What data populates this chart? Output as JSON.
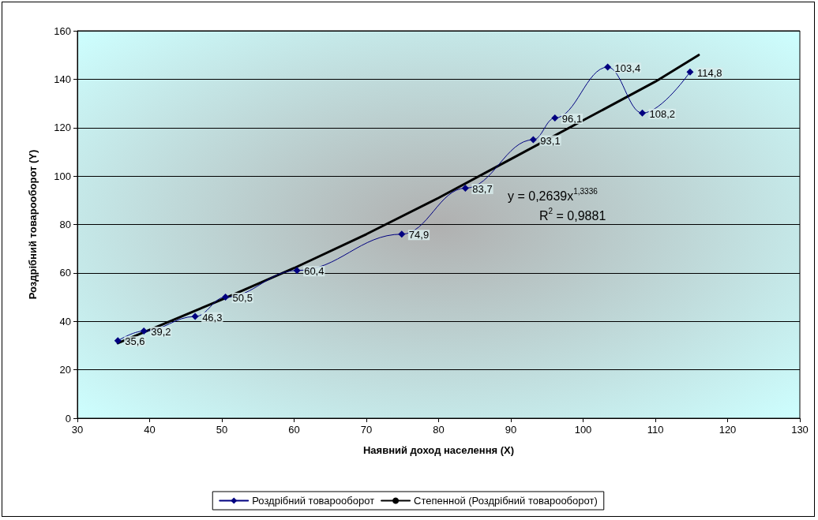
{
  "chart_data": {
    "type": "line",
    "xlabel": "Наявний доход населення (X)",
    "ylabel": "Роздрібний товарооборот (Y)",
    "xlim": [
      30,
      130
    ],
    "xticks": [
      30,
      40,
      50,
      60,
      70,
      80,
      90,
      100,
      110,
      120,
      130
    ],
    "ylim": [
      0,
      160
    ],
    "yticks": [
      0,
      20,
      40,
      60,
      80,
      100,
      120,
      140,
      160
    ],
    "grid": "y",
    "legend": "bottom",
    "marker": "diamond",
    "annotations": [
      "y = 0,2639x$^{1,3336}$",
      "R$^{2}$ = 0,9881",
      {
        "text": "35,6",
        "x": 35.6,
        "y": 32
      },
      {
        "text": "39,2",
        "x": 39.2,
        "y": 36
      },
      {
        "text": "46,3",
        "x": 46.3,
        "y": 42
      },
      {
        "text": "50,5",
        "x": 50.5,
        "y": 50
      },
      {
        "text": "60,4",
        "x": 60.4,
        "y": 61
      },
      {
        "text": "74,9",
        "x": 74.9,
        "y": 76
      },
      {
        "text": "83,7",
        "x": 83.7,
        "y": 95
      },
      {
        "text": "93,1",
        "x": 93.1,
        "y": 115
      },
      {
        "text": "96,1",
        "x": 96.1,
        "y": 124
      },
      {
        "text": "103,4",
        "x": 103.4,
        "y": 145
      },
      {
        "text": "108,2",
        "x": 108.2,
        "y": 126
      },
      {
        "text": "114,8",
        "x": 114.8,
        "y": 143
      }
    ],
    "series": [
      {
        "name": "Роздрібний товарооборот",
        "color": "#000080",
        "x": [
          35.6,
          39.2,
          46.3,
          50.5,
          60.4,
          74.9,
          83.7,
          93.1,
          96.1,
          103.4,
          108.2,
          114.8
        ],
        "values": [
          32,
          36,
          42,
          50,
          61,
          76,
          95,
          115,
          124,
          145,
          126,
          143
        ]
      },
      {
        "name": "Степенной (Роздрібний товарооборот)",
        "color": "#000000",
        "marker": "none",
        "x": [
          35.6,
          50,
          60,
          70,
          80,
          90,
          100,
          110,
          116
        ],
        "values": [
          31,
          49,
          62,
          76,
          91,
          107,
          123,
          139,
          150
        ]
      }
    ]
  }
}
